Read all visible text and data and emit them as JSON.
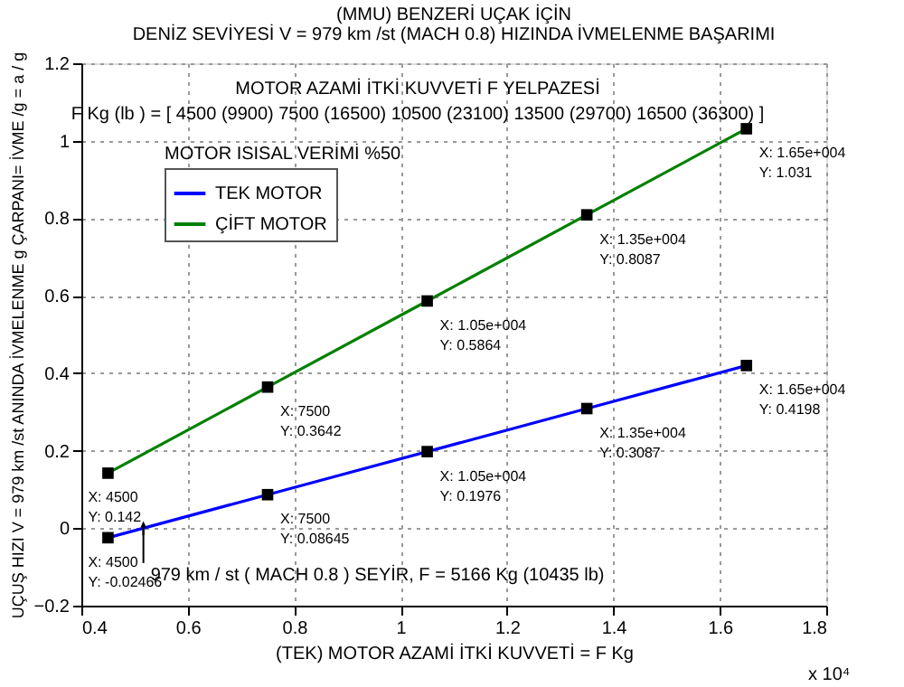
{
  "chart_data": {
    "type": "line",
    "title": "(MMU) BENZERİ UÇAK İÇİN",
    "subtitle": "DENİZ SEVİYESİ V = 979 km /st (MACH 0.8) HIZINDA İVMELENME BAŞARIMI",
    "xlabel": "(TEK) MOTOR AZAMİ İTKİ KUVVETİ =  F  Kg",
    "ylabel": "UÇUŞ HIZI V = 979 km /st ANINDA İVMELENME g ÇARPANI= İVME /g = a / g",
    "x": [
      0.45,
      0.75,
      1.05,
      1.35,
      1.65
    ],
    "series": [
      {
        "name": "TEK MOTOR",
        "color": "#0000ff",
        "values": [
          -0.02466,
          0.08645,
          0.1976,
          0.3087,
          0.4198
        ]
      },
      {
        "name": "ÇİFT MOTOR",
        "color": "#008000",
        "values": [
          0.142,
          0.3642,
          0.5864,
          0.8087,
          1.031
        ]
      }
    ],
    "xlim": [
      0.4,
      1.8
    ],
    "xticks": [
      0.4,
      0.6,
      0.8,
      1,
      1.2,
      1.4,
      1.6,
      1.8
    ],
    "ylim": [
      -0.2,
      1.2
    ],
    "yticks": [
      -0.2,
      0,
      0.2,
      0.4,
      0.6,
      0.8,
      1,
      1.2
    ],
    "grid": true,
    "legend": "top left",
    "marker": "square",
    "line_style": "solid",
    "annotations": [
      "MOTOR AZAMİ İTKİ KUVVETİ  F  YELPAZESİ",
      "F Kg (lb ) = [ 4500 (9900)  7500 (16500)  10500 (23100)  13500 (29700)  16500 (36300) ]",
      "MOTOR ISISAL VERİMİ %50",
      "x 10⁴",
      {
        "text": "979 km / st ( MACH 0.8 ) SEYİR, F = 5166 Kg (10435 lb)",
        "x": 0.5166,
        "y": 0
      },
      {
        "text": "X: 4500\nY: -0.02466",
        "x": 0.45,
        "y": -0.02466
      },
      {
        "text": "X: 7500\nY: 0.08645",
        "x": 0.75,
        "y": 0.08645
      },
      {
        "text": "X: 1.05e+004\nY: 0.1976",
        "x": 1.05,
        "y": 0.1976
      },
      {
        "text": "X: 1.35e+004\nY: 0.3087",
        "x": 1.35,
        "y": 0.3087
      },
      {
        "text": "X: 1.65e+004\nY: 0.4198",
        "x": 1.65,
        "y": 0.4198
      },
      {
        "text": "X: 4500\nY: 0.142",
        "x": 0.45,
        "y": 0.142
      },
      {
        "text": "X: 7500\nY: 0.3642",
        "x": 0.75,
        "y": 0.3642
      },
      {
        "text": "X: 1.05e+004\nY: 0.5864",
        "x": 1.05,
        "y": 0.5864
      },
      {
        "text": "X: 1.35e+004\nY: 0.8087",
        "x": 1.35,
        "y": 0.8087
      },
      {
        "text": "X: 1.65e+004\nY: 1.031",
        "x": 1.65,
        "y": 1.031
      }
    ]
  }
}
